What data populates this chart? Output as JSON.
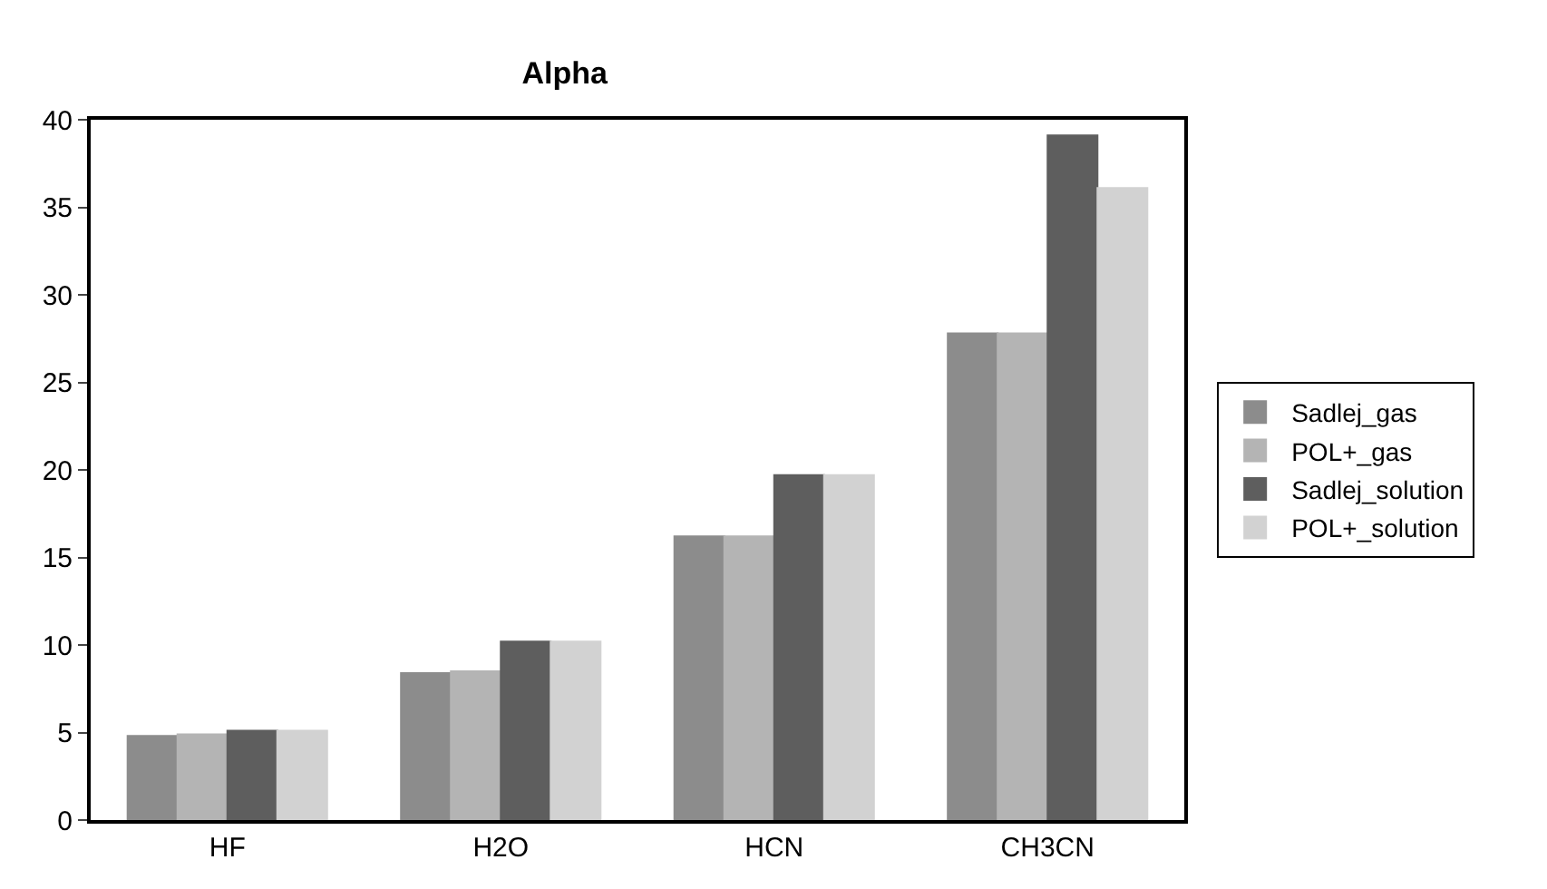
{
  "chart_data": {
    "type": "bar",
    "title": "Alpha",
    "categories": [
      "HF",
      "H2O",
      "HCN",
      "CH3CN"
    ],
    "series": [
      {
        "name": "Sadlej_gas",
        "color": "#8c8c8c",
        "values": [
          4.8,
          8.4,
          16.2,
          27.8
        ]
      },
      {
        "name": "POL+_gas",
        "color": "#b4b4b4",
        "values": [
          4.9,
          8.5,
          16.2,
          27.8
        ]
      },
      {
        "name": "Sadlej_solution",
        "color": "#5e5e5e",
        "values": [
          5.1,
          10.2,
          19.7,
          39.1
        ]
      },
      {
        "name": "POL+_solution",
        "color": "#d2d2d2",
        "values": [
          5.1,
          10.2,
          19.7,
          36.1
        ]
      }
    ],
    "ylim": [
      0,
      40
    ],
    "yticks": [
      0,
      5,
      10,
      15,
      20,
      25,
      30,
      35,
      40
    ],
    "grid": false,
    "legend": "right"
  }
}
